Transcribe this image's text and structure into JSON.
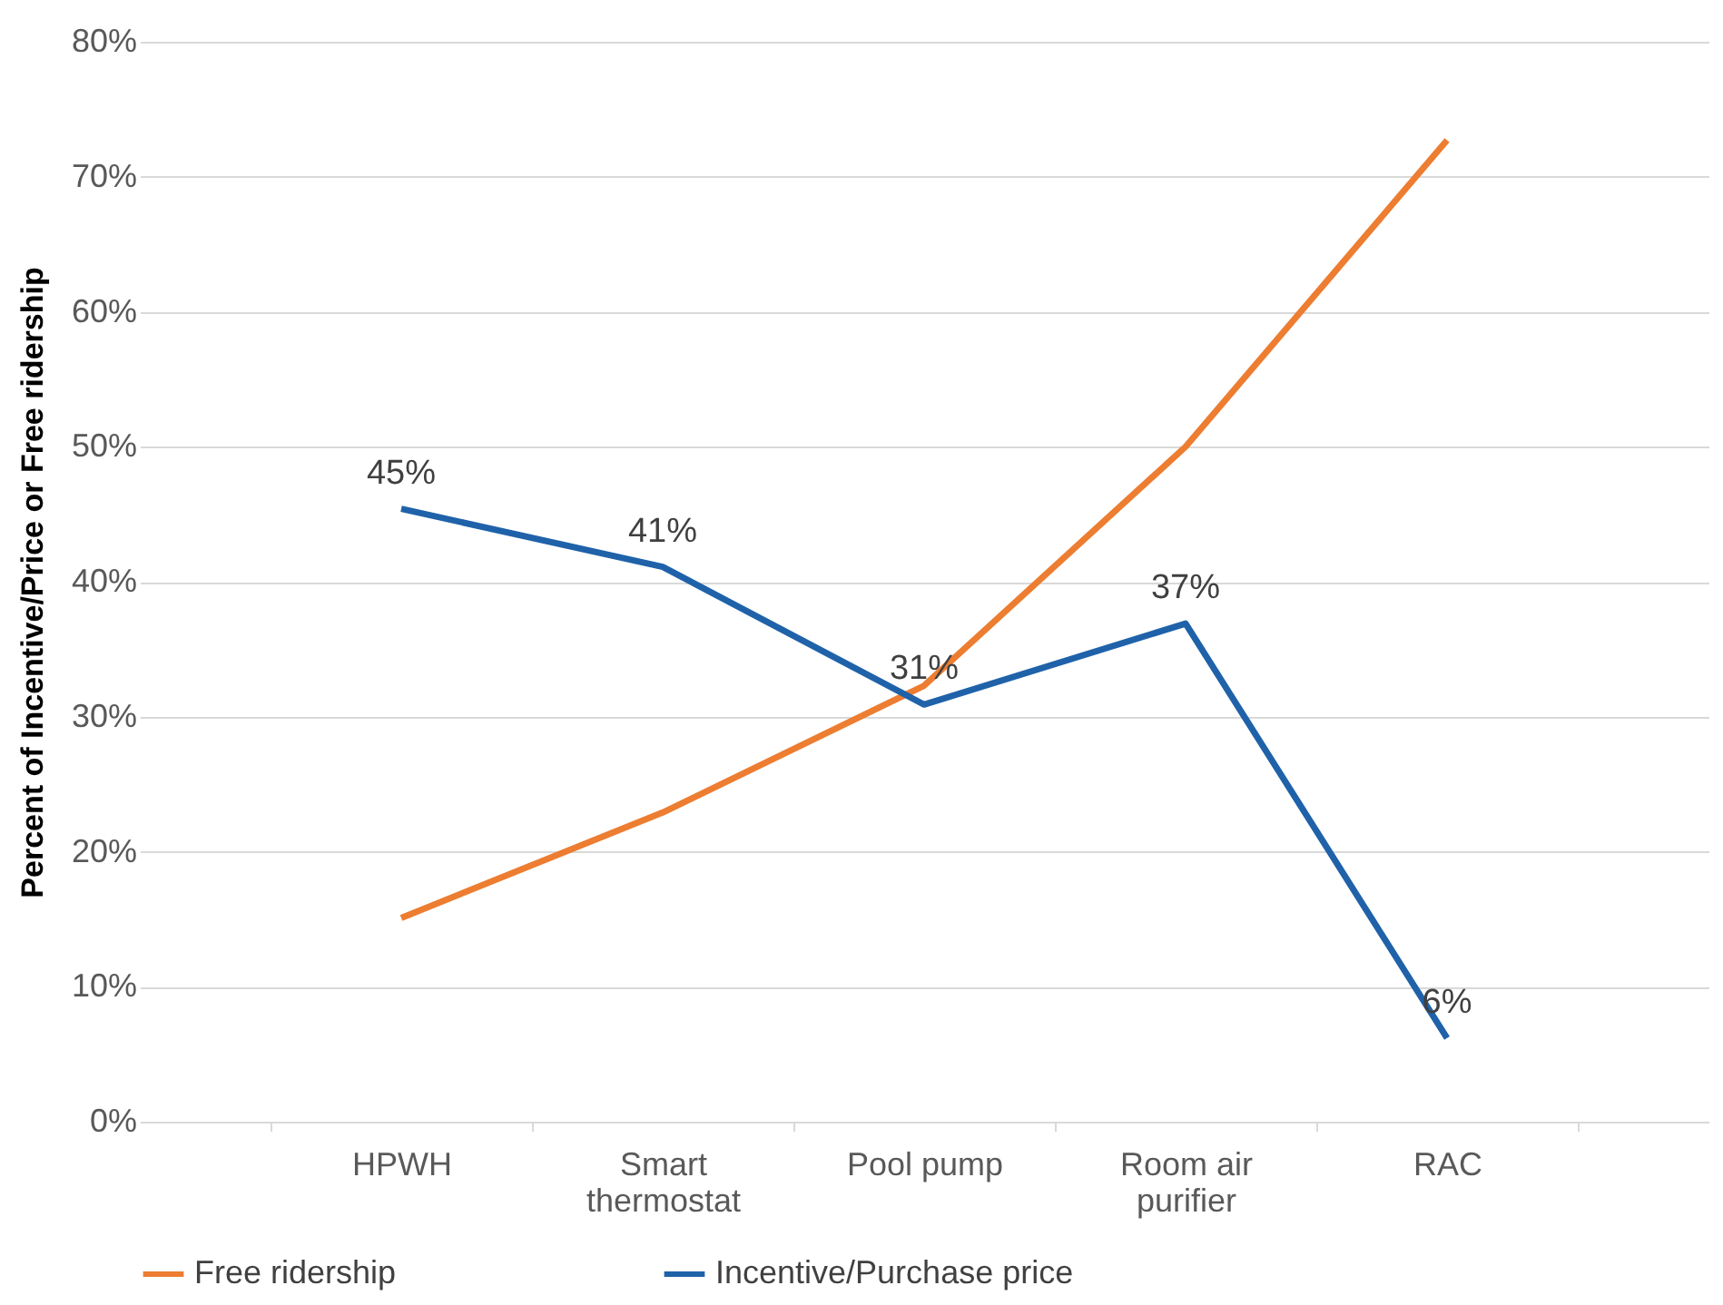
{
  "chart_data": {
    "type": "line",
    "ylabel": "Percent of Incentive/Price or Free ridership",
    "categories": [
      "HPWH",
      "Smart thermostat",
      "Pool pump",
      "Room air purifier",
      "RAC"
    ],
    "series": [
      {
        "name": "Free ridership",
        "color": "#ed7d31",
        "values": [
          15.1,
          22.9,
          32.3,
          50.0,
          72.7
        ]
      },
      {
        "name": "Incentive/Purchase price",
        "color": "#1f62a9",
        "values": [
          45.4,
          41.1,
          30.9,
          36.9,
          6.2
        ],
        "value_labels": [
          "45%",
          "41%",
          "31%",
          "37%",
          "6%"
        ]
      }
    ],
    "ylim": [
      0,
      80
    ],
    "yticks": [
      {
        "value": 0,
        "label": "0%"
      },
      {
        "value": 10,
        "label": "10%"
      },
      {
        "value": 20,
        "label": "20%"
      },
      {
        "value": 30,
        "label": "30%"
      },
      {
        "value": 40,
        "label": "40%"
      },
      {
        "value": 50,
        "label": "50%"
      },
      {
        "value": 60,
        "label": "60%"
      },
      {
        "value": 70,
        "label": "70%"
      },
      {
        "value": 80,
        "label": "80%"
      }
    ],
    "grid": "y",
    "legend": "bottom",
    "line_style": "solid"
  }
}
